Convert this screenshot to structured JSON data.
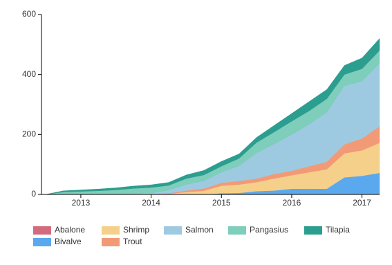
{
  "chart_data": {
    "type": "stacked-area",
    "x": [
      2012.5,
      2012.75,
      2013,
      2013.25,
      2013.5,
      2013.75,
      2014,
      2014.25,
      2014.5,
      2014.75,
      2015,
      2015.25,
      2015.5,
      2015.75,
      2016,
      2016.25,
      2016.5,
      2016.75,
      2017,
      2017.25
    ],
    "xlim": [
      2012.44,
      2017.25
    ],
    "xticks": [
      2013,
      2014,
      2015,
      2016,
      2017
    ],
    "ylim": [
      0,
      600
    ],
    "yticks": [
      0,
      200,
      400,
      600
    ],
    "legend": "bottom",
    "series": [
      {
        "name": "Abalone",
        "color": "#d36b7f",
        "values": [
          0,
          0,
          0,
          0,
          0,
          0,
          0,
          0,
          0,
          0,
          1,
          1,
          1,
          1,
          1,
          1,
          1,
          2,
          2,
          2
        ]
      },
      {
        "name": "Bivalve",
        "color": "#5aa9ee",
        "values": [
          0,
          0,
          0,
          0,
          0,
          0,
          0,
          0,
          0,
          0,
          3,
          4,
          10,
          12,
          18,
          18,
          18,
          55,
          60,
          70
        ]
      },
      {
        "name": "Shrimp",
        "color": "#f5d08b",
        "values": [
          0,
          0,
          0,
          0,
          0,
          0,
          0,
          2,
          8,
          12,
          25,
          28,
          30,
          40,
          45,
          55,
          65,
          80,
          85,
          100
        ]
      },
      {
        "name": "Trout",
        "color": "#f29a76",
        "values": [
          0,
          0,
          0,
          0,
          0,
          0,
          0,
          2,
          5,
          8,
          10,
          12,
          12,
          15,
          15,
          20,
          25,
          30,
          40,
          55
        ]
      },
      {
        "name": "Salmon",
        "color": "#9ecae1",
        "values": [
          0,
          0,
          0,
          0,
          0,
          2,
          5,
          10,
          20,
          25,
          35,
          50,
          85,
          100,
          120,
          140,
          165,
          195,
          190,
          210
        ]
      },
      {
        "name": "Pangasius",
        "color": "#7fcdbb",
        "values": [
          0,
          8,
          10,
          12,
          15,
          18,
          18,
          16,
          20,
          20,
          20,
          25,
          35,
          40,
          45,
          45,
          45,
          38,
          42,
          43
        ]
      },
      {
        "name": "Tilapia",
        "color": "#2b9e8f",
        "values": [
          0,
          4,
          5,
          6,
          7,
          8,
          9,
          10,
          12,
          15,
          16,
          15,
          17,
          22,
          26,
          31,
          31,
          30,
          36,
          40
        ]
      }
    ]
  }
}
